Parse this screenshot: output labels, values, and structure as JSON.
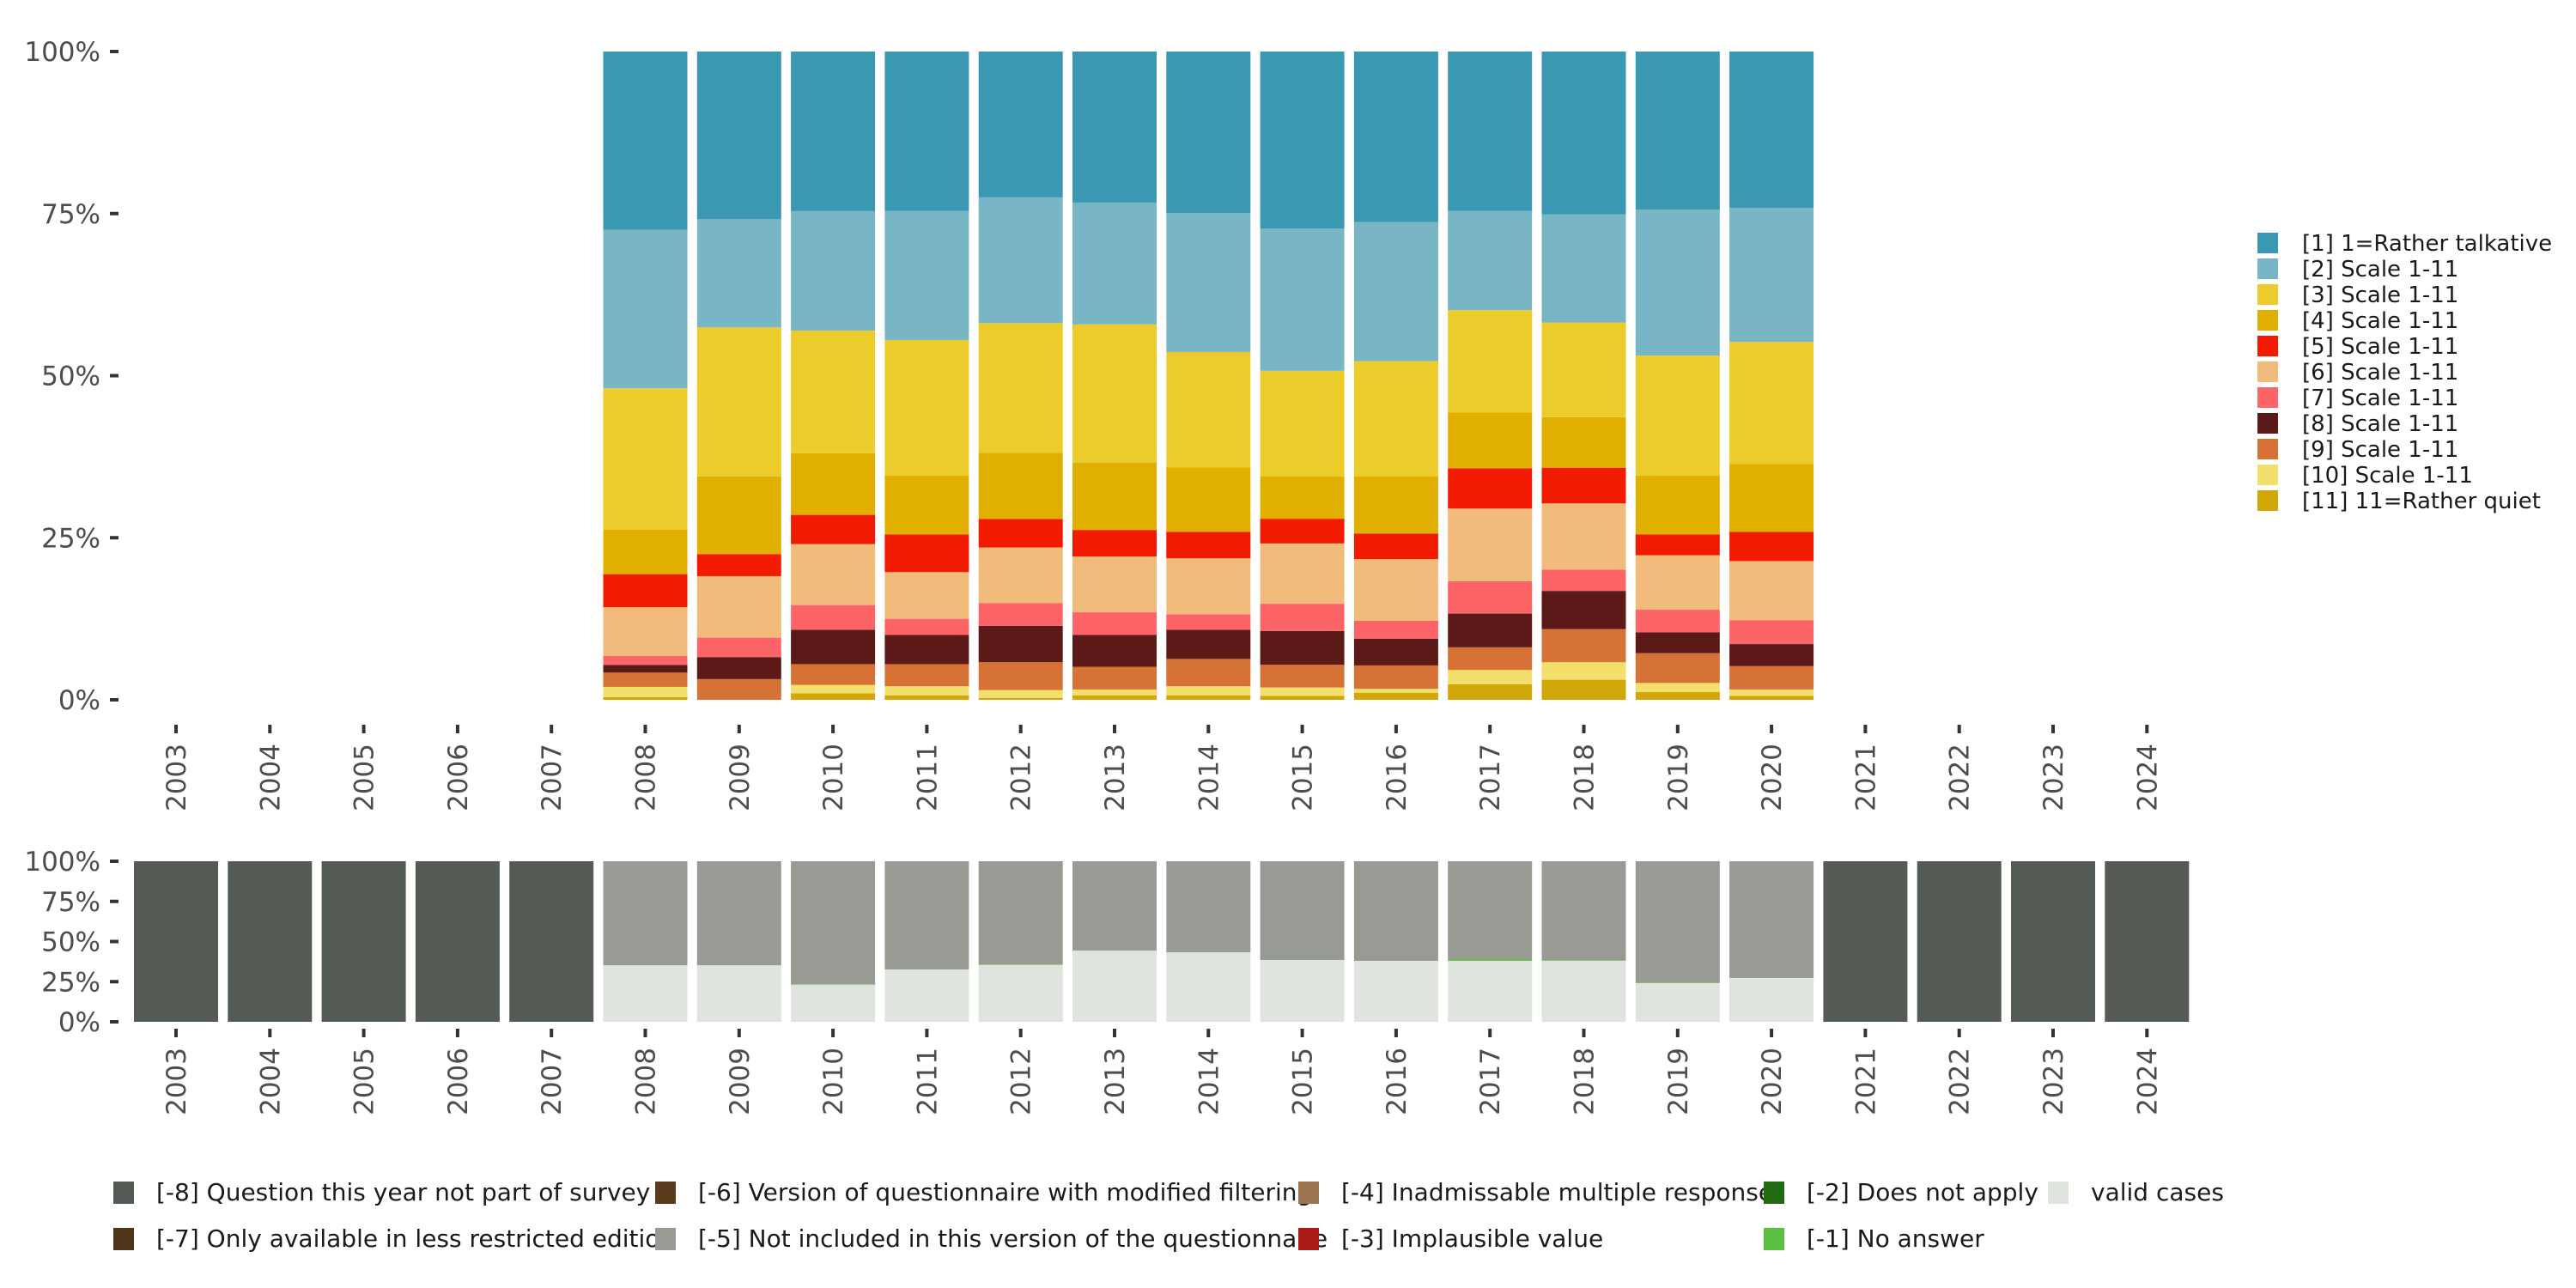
{
  "chart_data": [
    {
      "id": "valid-distribution",
      "type": "bar",
      "stacked": true,
      "title": "",
      "xlabel": "",
      "ylabel": "",
      "ylim": [
        0,
        100
      ],
      "yticks": [
        "0%",
        "25%",
        "50%",
        "75%",
        "100%"
      ],
      "ytick_values": [
        0,
        25,
        50,
        75,
        100
      ],
      "grid": false,
      "legend_position": "right",
      "categories": [
        "2003",
        "2004",
        "2005",
        "2006",
        "2007",
        "2008",
        "2009",
        "2010",
        "2011",
        "2012",
        "2013",
        "2014",
        "2015",
        "2016",
        "2017",
        "2018",
        "2019",
        "2020",
        "2021",
        "2022",
        "2023",
        "2024"
      ],
      "series": [
        {
          "name": "[1] 1=Rather talkative",
          "color": "#3b98b2",
          "values": [
            null,
            null,
            null,
            null,
            null,
            27.5,
            25.9,
            24.6,
            24.6,
            22.5,
            23.3,
            24.9,
            27.3,
            26.3,
            24.6,
            25.1,
            24.4,
            24.1,
            null,
            null,
            null,
            null
          ]
        },
        {
          "name": "[2] Scale 1-11",
          "color": "#78b6c5",
          "values": [
            null,
            null,
            null,
            null,
            null,
            24.5,
            16.7,
            18.4,
            19.9,
            19.4,
            18.8,
            21.4,
            21.9,
            21.4,
            15.3,
            16.7,
            22.5,
            20.7,
            null,
            null,
            null,
            null
          ]
        },
        {
          "name": "[3] Scale 1-11",
          "color": "#ebcc2a",
          "values": [
            null,
            null,
            null,
            null,
            null,
            21.8,
            23.0,
            18.9,
            20.9,
            20.0,
            21.3,
            17.8,
            16.3,
            17.8,
            15.8,
            14.6,
            18.5,
            18.8,
            null,
            null,
            null,
            null
          ]
        },
        {
          "name": "[4] Scale 1-11",
          "color": "#e1af00",
          "values": [
            null,
            null,
            null,
            null,
            null,
            6.9,
            12.0,
            9.5,
            9.1,
            10.2,
            10.4,
            9.9,
            6.5,
            8.8,
            8.6,
            7.8,
            9.1,
            10.5,
            null,
            null,
            null,
            null
          ]
        },
        {
          "name": "[5] Scale 1-11",
          "color": "#f21a00",
          "values": [
            null,
            null,
            null,
            null,
            null,
            5.1,
            3.4,
            4.5,
            5.8,
            4.4,
            4.1,
            4.1,
            3.8,
            3.9,
            6.2,
            5.5,
            3.2,
            4.5,
            null,
            null,
            null,
            null
          ]
        },
        {
          "name": "[6] Scale 1-11",
          "color": "#f1bb7b",
          "values": [
            null,
            null,
            null,
            null,
            null,
            7.5,
            9.5,
            9.4,
            7.2,
            8.6,
            8.6,
            8.6,
            9.3,
            9.5,
            11.2,
            10.2,
            8.4,
            9.1,
            null,
            null,
            null,
            null
          ]
        },
        {
          "name": "[7] Scale 1-11",
          "color": "#fd6467",
          "values": [
            null,
            null,
            null,
            null,
            null,
            1.4,
            3.0,
            3.8,
            2.5,
            3.5,
            3.5,
            2.4,
            4.2,
            2.8,
            5.0,
            3.3,
            3.5,
            3.7,
            null,
            null,
            null,
            null
          ]
        },
        {
          "name": "[8] Scale 1-11",
          "color": "#5b1a18",
          "values": [
            null,
            null,
            null,
            null,
            null,
            1.2,
            3.4,
            5.3,
            4.5,
            5.6,
            4.9,
            4.5,
            5.2,
            4.1,
            5.2,
            5.9,
            3.2,
            3.4,
            null,
            null,
            null,
            null
          ]
        },
        {
          "name": "[9] Scale 1-11",
          "color": "#d67236",
          "values": [
            null,
            null,
            null,
            null,
            null,
            2.2,
            3.2,
            3.2,
            3.4,
            4.3,
            3.5,
            4.2,
            3.5,
            3.6,
            3.5,
            5.1,
            4.6,
            3.6,
            null,
            null,
            null,
            null
          ]
        },
        {
          "name": "[10] Scale 1-11",
          "color": "#f3df6c",
          "values": [
            null,
            null,
            null,
            null,
            null,
            1.6,
            0.0,
            1.3,
            1.4,
            1.2,
            0.9,
            1.4,
            1.3,
            0.6,
            2.2,
            2.7,
            1.4,
            1.0,
            null,
            null,
            null,
            null
          ]
        },
        {
          "name": "[11] 11=Rather quiet",
          "color": "#d1a808",
          "values": [
            null,
            null,
            null,
            null,
            null,
            0.4,
            0.0,
            1.0,
            0.7,
            0.3,
            0.7,
            0.7,
            0.6,
            1.1,
            2.4,
            3.1,
            1.2,
            0.6,
            null,
            null,
            null,
            null
          ]
        }
      ]
    },
    {
      "id": "missing-overview",
      "type": "bar",
      "stacked": true,
      "title": "",
      "xlabel": "",
      "ylabel": "",
      "ylim": [
        0,
        100
      ],
      "yticks": [
        "0%",
        "25%",
        "50%",
        "75%",
        "100%"
      ],
      "ytick_values": [
        0,
        25,
        50,
        75,
        100
      ],
      "grid": false,
      "legend_position": "bottom",
      "categories": [
        "2003",
        "2004",
        "2005",
        "2006",
        "2007",
        "2008",
        "2009",
        "2010",
        "2011",
        "2012",
        "2013",
        "2014",
        "2015",
        "2016",
        "2017",
        "2018",
        "2019",
        "2020",
        "2021",
        "2022",
        "2023",
        "2024"
      ],
      "series": [
        {
          "name": "[-8] Question this year not part of survey",
          "color": "#545b54",
          "values": [
            100,
            100,
            100,
            100,
            100,
            0,
            0,
            0,
            0,
            0,
            0,
            0,
            0,
            0,
            0,
            0,
            0,
            0,
            100,
            100,
            100,
            100
          ]
        },
        {
          "name": "[-7] Only available in less restricted edition",
          "color": "#4f341a",
          "values": [
            0,
            0,
            0,
            0,
            0,
            0,
            0,
            0,
            0,
            0,
            0,
            0,
            0,
            0,
            0,
            0,
            0,
            0,
            0,
            0,
            0,
            0
          ]
        },
        {
          "name": "[-6] Version of questionnaire with modified filtering",
          "color": "#5a3a1b",
          "values": [
            0,
            0,
            0,
            0,
            0,
            0,
            0,
            0,
            0,
            0,
            0,
            0,
            0,
            0,
            0,
            0,
            0,
            0,
            0,
            0,
            0,
            0
          ]
        },
        {
          "name": "[-5] Not included in this version of the questionnaire",
          "color": "#979b94",
          "values": [
            0,
            0,
            0,
            0,
            0,
            64.8,
            64.8,
            76.5,
            67.4,
            64.2,
            55.6,
            56.7,
            61.5,
            62.0,
            61.0,
            61.6,
            75.6,
            72.7,
            0,
            0,
            0,
            0
          ]
        },
        {
          "name": "[-4] Inadmissable multiple response",
          "color": "#9a7550",
          "values": [
            0,
            0,
            0,
            0,
            0,
            0,
            0,
            0,
            0,
            0,
            0,
            0,
            0,
            0,
            0,
            0,
            0,
            0,
            0,
            0,
            0,
            0
          ]
        },
        {
          "name": "[-3] Implausible value",
          "color": "#a81b16",
          "values": [
            0,
            0,
            0,
            0,
            0,
            0,
            0,
            0,
            0,
            0,
            0,
            0,
            0,
            0,
            0,
            0,
            0,
            0,
            0,
            0,
            0,
            0
          ]
        },
        {
          "name": "[-2] Does not apply",
          "color": "#216b12",
          "values": [
            0,
            0,
            0,
            0,
            0,
            0,
            0,
            0,
            0,
            0,
            0,
            0,
            0,
            0,
            0,
            0,
            0,
            0,
            0,
            0,
            0,
            0
          ]
        },
        {
          "name": "[-1] No answer",
          "color": "#5bbf3f",
          "values": [
            0,
            0,
            0,
            0,
            0,
            0,
            0,
            0.3,
            0,
            0.3,
            0,
            0,
            0,
            0,
            1.0,
            0.4,
            0.3,
            0,
            0,
            0,
            0,
            0
          ]
        },
        {
          "name": "valid cases",
          "color": "#dfe4df",
          "values": [
            0,
            0,
            0,
            0,
            0,
            35.2,
            35.2,
            23.2,
            32.6,
            35.5,
            44.4,
            43.3,
            38.5,
            38.0,
            38.0,
            38.0,
            24.1,
            27.3,
            0,
            0,
            0,
            0
          ]
        }
      ]
    }
  ],
  "legends": {
    "right": {
      "items": [
        "[1] 1=Rather talkative",
        "[2] Scale 1-11",
        "[3] Scale 1-11",
        "[4] Scale 1-11",
        "[5] Scale 1-11",
        "[6] Scale 1-11",
        "[7] Scale 1-11",
        "[8] Scale 1-11",
        "[9] Scale 1-11",
        "[10] Scale 1-11",
        "[11] 11=Rather quiet"
      ]
    },
    "bottom": {
      "rows": [
        [
          "[-8] Question this year not part of survey",
          "[-6] Version of questionnaire with modified filtering",
          "[-4] Inadmissable multiple response",
          "[-2] Does not apply",
          "valid cases"
        ],
        [
          "[-7] Only available in less restricted edition",
          "[-5] Not included in this version of the questionnaire",
          "[-3] Implausible value",
          "[-1] No answer",
          ""
        ]
      ],
      "row_colors": [
        [
          "#545b54",
          "#5a3a1b",
          "#9a7550",
          "#216b12",
          "#dfe4df"
        ],
        [
          "#4f341a",
          "#979b94",
          "#a81b16",
          "#5bbf3f",
          ""
        ]
      ]
    }
  }
}
